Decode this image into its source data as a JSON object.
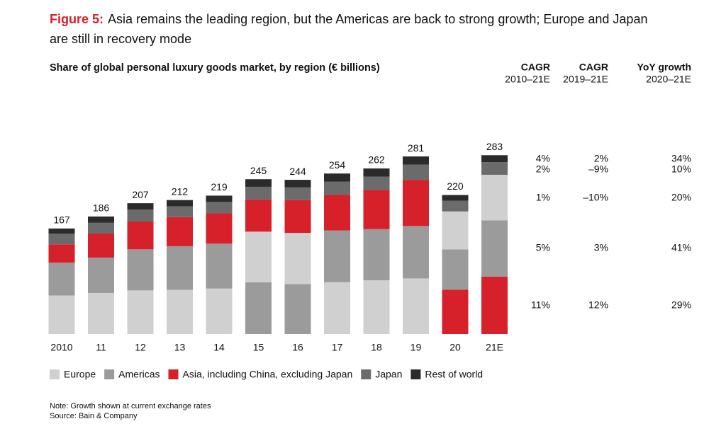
{
  "chart_data": {
    "type": "stacked-bar",
    "title_label": "Figure 5:",
    "title": "Asia remains the leading region, but the Americas are back to strong growth; Europe and Japan are still in recovery mode",
    "subtitle": "Share of global personal luxury goods market, by region (€ billions)",
    "categories": [
      "2010",
      "11",
      "12",
      "13",
      "14",
      "15",
      "16",
      "17",
      "18",
      "19",
      "20",
      "21E"
    ],
    "totals": [
      167,
      186,
      207,
      212,
      219,
      245,
      244,
      254,
      262,
      281,
      220,
      283
    ],
    "series": [
      {
        "name": "Europe",
        "color": "#d0d0d0",
        "values": [
          61,
          65,
          69,
          70,
          72,
          80,
          81,
          82,
          85,
          88,
          60,
          72
        ]
      },
      {
        "name": "Americas",
        "color": "#9b9b9b",
        "values": [
          52,
          56,
          65,
          69,
          71,
          82,
          79,
          82,
          81,
          83,
          64,
          89
        ]
      },
      {
        "name": "Asia, including China, excluding Japan",
        "color": "#d6202a",
        "values": [
          29,
          38,
          44,
          46,
          48,
          51,
          52,
          56,
          62,
          73,
          70,
          91
        ]
      },
      {
        "name": "Japan",
        "color": "#6b6b6b",
        "values": [
          17,
          17,
          19,
          17,
          18,
          20,
          20,
          21,
          21,
          24,
          17,
          20
        ]
      },
      {
        "name": "Rest of world",
        "color": "#2b2b2b",
        "values": [
          8,
          10,
          10,
          10,
          10,
          12,
          12,
          13,
          13,
          13,
          9,
          11
        ]
      }
    ],
    "stack_order": [
      [
        0,
        1,
        2,
        3,
        4
      ],
      [
        0,
        1,
        2,
        3,
        4
      ],
      [
        0,
        1,
        2,
        3,
        4
      ],
      [
        0,
        1,
        2,
        3,
        4
      ],
      [
        0,
        1,
        2,
        3,
        4
      ],
      [
        1,
        0,
        2,
        3,
        4
      ],
      [
        1,
        0,
        2,
        3,
        4
      ],
      [
        0,
        1,
        2,
        3,
        4
      ],
      [
        0,
        1,
        2,
        3,
        4
      ],
      [
        0,
        1,
        2,
        3,
        4
      ],
      [
        2,
        1,
        0,
        3,
        4
      ],
      [
        2,
        1,
        0,
        3,
        4
      ]
    ],
    "table": {
      "headers": [
        [
          "CAGR",
          "2010–21E"
        ],
        [
          "CAGR",
          "2019–21E"
        ],
        [
          "YoY growth",
          "2020–21E"
        ]
      ],
      "rows": [
        [
          "4%",
          "2%",
          "34%"
        ],
        [
          "2%",
          "–9%",
          "10%"
        ],
        [
          "1%",
          "–10%",
          "20%"
        ],
        [
          "5%",
          "3%",
          "41%"
        ],
        [
          "11%",
          "12%",
          "29%"
        ]
      ]
    },
    "notes": [
      "Note: Growth shown at current exchange rates",
      "Source: Bain & Company"
    ]
  }
}
